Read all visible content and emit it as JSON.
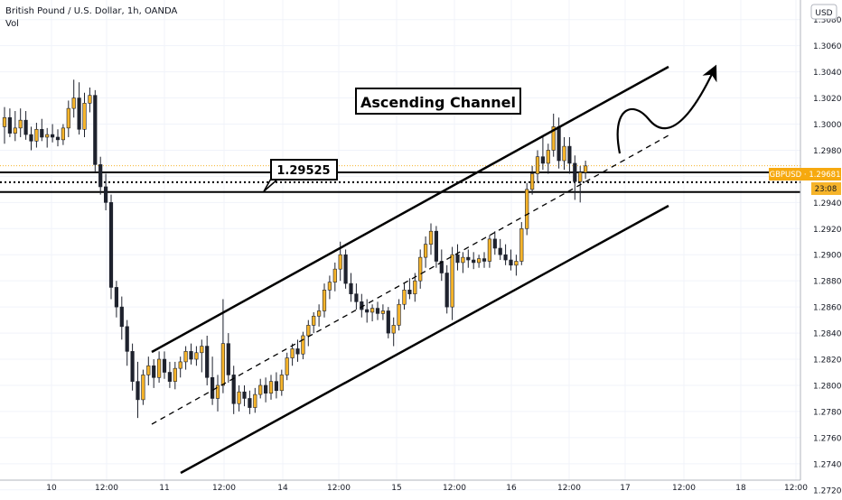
{
  "header": {
    "title": "British Pound / U.S. Dollar, 1h, OANDA",
    "volume_label": "Vol"
  },
  "currency_badge": "USD",
  "price_tag": {
    "label": "GBPUSD · 1.29681",
    "color": "#f6a90f"
  },
  "timer_tag": "23:08",
  "annotations": {
    "channel_title": "Ascending Channel",
    "level_callout": "1.29525"
  },
  "chart_data": {
    "type": "candlestick",
    "title": "British Pound / U.S. Dollar, 1h, OANDA",
    "y_axis_ticks": [
      "1.30800",
      "1.30600",
      "1.30400",
      "1.30200",
      "1.30000",
      "1.29800",
      "1.29600",
      "1.29400",
      "1.29200",
      "1.29000",
      "1.28800",
      "1.28600",
      "1.28400",
      "1.28200",
      "1.28000",
      "1.27800",
      "1.27600",
      "1.27400",
      "1.27200"
    ],
    "x_axis_ticks": [
      "10",
      "12:00",
      "11",
      "12:00",
      "14",
      "12:00",
      "15",
      "12:00",
      "16",
      "12:00",
      "17",
      "12:00",
      "18",
      "12:00"
    ],
    "ylim": [
      1.2715,
      1.3095
    ],
    "grid": true,
    "colors": {
      "up": "#f6b42a",
      "down": "#1e222d",
      "line": "#000000"
    },
    "current_price": 1.29681,
    "support_resistance_zone": [
      1.2948,
      1.2963
    ],
    "marked_level": 1.29525,
    "candles": [
      [
        1.2998,
        1.3013,
        1.2985,
        1.3005
      ],
      [
        1.3005,
        1.3012,
        1.299,
        1.2993
      ],
      [
        1.2993,
        1.301,
        1.2987,
        1.2997
      ],
      [
        1.2997,
        1.3012,
        1.299,
        1.3003
      ],
      [
        1.3003,
        1.301,
        1.2988,
        1.2992
      ],
      [
        1.2992,
        1.2998,
        1.298,
        1.2987
      ],
      [
        1.2987,
        1.3001,
        1.2982,
        1.2996
      ],
      [
        1.2996,
        1.3004,
        1.2987,
        1.299
      ],
      [
        1.299,
        1.2997,
        1.2982,
        1.2992
      ],
      [
        1.2992,
        1.3,
        1.2986,
        1.299
      ],
      [
        1.299,
        1.2996,
        1.2983,
        1.2988
      ],
      [
        1.2988,
        1.3,
        1.2984,
        1.2997
      ],
      [
        1.2997,
        1.3018,
        1.299,
        1.3012
      ],
      [
        1.3012,
        1.3034,
        1.3005,
        1.302
      ],
      [
        1.302,
        1.3032,
        1.2992,
        1.2996
      ],
      [
        1.2996,
        1.3024,
        1.299,
        1.3016
      ],
      [
        1.3016,
        1.3028,
        1.3009,
        1.3022
      ],
      [
        1.3022,
        1.3026,
        1.2963,
        1.2969
      ],
      [
        1.2969,
        1.2975,
        1.2946,
        1.2952
      ],
      [
        1.2952,
        1.2962,
        1.2934,
        1.294
      ],
      [
        1.294,
        1.2946,
        1.2866,
        1.2875
      ],
      [
        1.2875,
        1.288,
        1.2852,
        1.286
      ],
      [
        1.286,
        1.2868,
        1.2835,
        1.2845
      ],
      [
        1.2845,
        1.285,
        1.2815,
        1.2826
      ],
      [
        1.2826,
        1.2832,
        1.2796,
        1.2803
      ],
      [
        1.2803,
        1.2818,
        1.2775,
        1.2789
      ],
      [
        1.2789,
        1.2812,
        1.2785,
        1.2808
      ],
      [
        1.2808,
        1.2822,
        1.28,
        1.2815
      ],
      [
        1.2815,
        1.282,
        1.2798,
        1.2806
      ],
      [
        1.2806,
        1.2826,
        1.2802,
        1.282
      ],
      [
        1.282,
        1.2826,
        1.2805,
        1.281
      ],
      [
        1.281,
        1.2818,
        1.2798,
        1.2803
      ],
      [
        1.2803,
        1.2818,
        1.2797,
        1.2813
      ],
      [
        1.2813,
        1.2822,
        1.2806,
        1.2818
      ],
      [
        1.2818,
        1.283,
        1.2812,
        1.2826
      ],
      [
        1.2826,
        1.2832,
        1.2816,
        1.282
      ],
      [
        1.282,
        1.283,
        1.2815,
        1.2825
      ],
      [
        1.2825,
        1.2835,
        1.281,
        1.283
      ],
      [
        1.283,
        1.2838,
        1.28,
        1.2806
      ],
      [
        1.2806,
        1.2822,
        1.2785,
        1.279
      ],
      [
        1.279,
        1.2808,
        1.278,
        1.28
      ],
      [
        1.28,
        1.2866,
        1.2794,
        1.2832
      ],
      [
        1.2832,
        1.284,
        1.2802,
        1.2808
      ],
      [
        1.2808,
        1.2815,
        1.2778,
        1.2786
      ],
      [
        1.2786,
        1.28,
        1.278,
        1.2795
      ],
      [
        1.2795,
        1.28,
        1.2784,
        1.279
      ],
      [
        1.279,
        1.2796,
        1.2778,
        1.2783
      ],
      [
        1.2783,
        1.2798,
        1.2779,
        1.2793
      ],
      [
        1.2793,
        1.2805,
        1.279,
        1.28
      ],
      [
        1.28,
        1.2806,
        1.2787,
        1.2794
      ],
      [
        1.2794,
        1.2808,
        1.2789,
        1.2803
      ],
      [
        1.2803,
        1.281,
        1.279,
        1.2796
      ],
      [
        1.2796,
        1.2812,
        1.2792,
        1.2808
      ],
      [
        1.2808,
        1.2825,
        1.2804,
        1.2821
      ],
      [
        1.2821,
        1.2832,
        1.2815,
        1.2828
      ],
      [
        1.2828,
        1.2835,
        1.2818,
        1.2824
      ],
      [
        1.2824,
        1.2841,
        1.282,
        1.2838
      ],
      [
        1.2838,
        1.285,
        1.283,
        1.2846
      ],
      [
        1.2846,
        1.2856,
        1.284,
        1.2853
      ],
      [
        1.2853,
        1.2862,
        1.2845,
        1.2857
      ],
      [
        1.2857,
        1.2878,
        1.2852,
        1.2873
      ],
      [
        1.2873,
        1.2884,
        1.2866,
        1.2879
      ],
      [
        1.2879,
        1.2894,
        1.2872,
        1.2889
      ],
      [
        1.2889,
        1.291,
        1.288,
        1.29
      ],
      [
        1.29,
        1.2904,
        1.2874,
        1.2878
      ],
      [
        1.2878,
        1.2886,
        1.2864,
        1.287
      ],
      [
        1.287,
        1.2878,
        1.2858,
        1.2864
      ],
      [
        1.2864,
        1.287,
        1.2852,
        1.2858
      ],
      [
        1.2858,
        1.2866,
        1.2848,
        1.2856
      ],
      [
        1.2856,
        1.2862,
        1.2849,
        1.2859
      ],
      [
        1.2859,
        1.2864,
        1.285,
        1.2855
      ],
      [
        1.2855,
        1.2862,
        1.285,
        1.2857
      ],
      [
        1.2857,
        1.286,
        1.2836,
        1.284
      ],
      [
        1.284,
        1.2852,
        1.283,
        1.2846
      ],
      [
        1.2846,
        1.2866,
        1.2842,
        1.2862
      ],
      [
        1.2862,
        1.2878,
        1.2858,
        1.2873
      ],
      [
        1.2873,
        1.2882,
        1.2866,
        1.287
      ],
      [
        1.287,
        1.2886,
        1.2864,
        1.288
      ],
      [
        1.288,
        1.2904,
        1.2874,
        1.2898
      ],
      [
        1.2898,
        1.2914,
        1.289,
        1.2908
      ],
      [
        1.2908,
        1.2924,
        1.29,
        1.2918
      ],
      [
        1.2918,
        1.2922,
        1.289,
        1.2895
      ],
      [
        1.2895,
        1.2904,
        1.288,
        1.2886
      ],
      [
        1.2886,
        1.2892,
        1.2855,
        1.286
      ],
      [
        1.286,
        1.2906,
        1.285,
        1.29
      ],
      [
        1.29,
        1.2908,
        1.2888,
        1.2894
      ],
      [
        1.2894,
        1.2902,
        1.2886,
        1.2898
      ],
      [
        1.2898,
        1.2904,
        1.289,
        1.2896
      ],
      [
        1.2896,
        1.2902,
        1.2889,
        1.2894
      ],
      [
        1.2894,
        1.29,
        1.289,
        1.2897
      ],
      [
        1.2897,
        1.2902,
        1.289,
        1.2895
      ],
      [
        1.2895,
        1.2915,
        1.289,
        1.2912
      ],
      [
        1.2912,
        1.2918,
        1.29,
        1.2905
      ],
      [
        1.2905,
        1.2912,
        1.2896,
        1.29
      ],
      [
        1.29,
        1.2908,
        1.2892,
        1.2896
      ],
      [
        1.2896,
        1.2904,
        1.2888,
        1.2892
      ],
      [
        1.2892,
        1.29,
        1.2884,
        1.2895
      ],
      [
        1.2895,
        1.2925,
        1.2892,
        1.292
      ],
      [
        1.292,
        1.2955,
        1.2915,
        1.295
      ],
      [
        1.295,
        1.2968,
        1.2946,
        1.2962
      ],
      [
        1.2962,
        1.298,
        1.2955,
        1.2975
      ],
      [
        1.2975,
        1.299,
        1.2965,
        1.297
      ],
      [
        1.297,
        1.2985,
        1.2962,
        1.298
      ],
      [
        1.298,
        1.3008,
        1.2975,
        1.2998
      ],
      [
        1.2998,
        1.3005,
        1.2966,
        1.2972
      ],
      [
        1.2972,
        1.299,
        1.2965,
        1.2983
      ],
      [
        1.2983,
        1.299,
        1.2962,
        1.297
      ],
      [
        1.297,
        1.2976,
        1.2942,
        1.2956
      ],
      [
        1.2956,
        1.2968,
        1.294,
        1.2963
      ],
      [
        1.2963,
        1.2972,
        1.2958,
        1.2968
      ]
    ],
    "drawings": {
      "upper_channel_line": [
        [
          168,
          390
        ],
        [
          740,
          74
        ]
      ],
      "lower_channel_line": [
        [
          200,
          524
        ],
        [
          740,
          228
        ]
      ],
      "mid_dashed_line": [
        [
          168,
          470
        ],
        [
          740,
          150
        ]
      ],
      "level_lines": [
        1.2948,
        1.2963
      ]
    }
  }
}
